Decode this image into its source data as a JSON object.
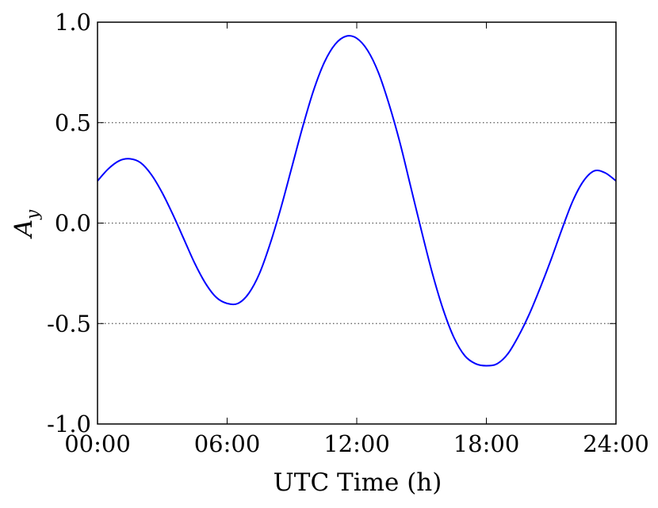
{
  "chart_data": {
    "type": "line",
    "xlabel": "UTC Time (h)",
    "ylabel": "A",
    "ylabel_subscript": "y",
    "xlim": [
      0,
      24
    ],
    "ylim": [
      -1.0,
      1.0
    ],
    "x_ticks": [
      0,
      6,
      12,
      18,
      24
    ],
    "x_tick_labels": [
      "00:00",
      "06:00",
      "12:00",
      "18:00",
      "24:00"
    ],
    "y_ticks": [
      1.0,
      0.5,
      0.0,
      -0.5,
      -1.0
    ],
    "y_tick_labels": [
      "1.0",
      "0.5",
      "0.0",
      "-0.5",
      "-1.0"
    ],
    "grid": "horizontal dotted",
    "series": [
      {
        "color": "#0000ff",
        "x": [
          0,
          0.5,
          1,
          1.5,
          2,
          2.5,
          3,
          3.5,
          4,
          4.5,
          5,
          5.5,
          6,
          6.5,
          7,
          7.5,
          8,
          8.5,
          9,
          9.5,
          10,
          10.5,
          11,
          11.5,
          12,
          12.5,
          13,
          13.5,
          14,
          14.5,
          15,
          15.5,
          16,
          16.5,
          17,
          17.5,
          18,
          18.5,
          19,
          19.5,
          20,
          20.5,
          21,
          21.5,
          22,
          22.5,
          23,
          23.5,
          24
        ],
        "y": [
          0.21,
          0.27,
          0.31,
          0.32,
          0.3,
          0.24,
          0.15,
          0.04,
          -0.08,
          -0.2,
          -0.3,
          -0.37,
          -0.4,
          -0.4,
          -0.35,
          -0.25,
          -0.1,
          0.08,
          0.28,
          0.48,
          0.66,
          0.8,
          0.89,
          0.93,
          0.92,
          0.86,
          0.75,
          0.59,
          0.4,
          0.18,
          -0.04,
          -0.25,
          -0.43,
          -0.57,
          -0.66,
          -0.7,
          -0.71,
          -0.7,
          -0.65,
          -0.56,
          -0.45,
          -0.32,
          -0.18,
          -0.03,
          0.11,
          0.21,
          0.26,
          0.25,
          0.21
        ]
      }
    ]
  }
}
